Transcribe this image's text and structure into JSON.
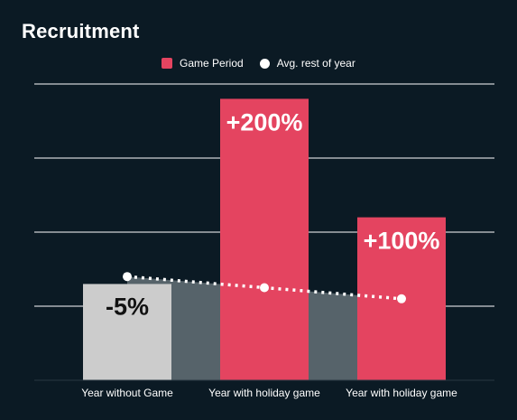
{
  "title": "Recruitment",
  "legend": {
    "bar_label": "Game Period",
    "line_label": "Avg. rest of year"
  },
  "colors": {
    "background": "#0b1a24",
    "bar_accent": "#e44460",
    "bar_neutral": "#cccccc",
    "area_fill": "#56636a",
    "gridline": "#ffffff",
    "dots": "#ffffff"
  },
  "chart_data": {
    "type": "bar",
    "title": "Recruitment",
    "categories": [
      "Year without Game",
      "Year with holiday game",
      "Year with holiday game"
    ],
    "series": [
      {
        "name": "Game Period",
        "values": [
          1.3,
          3.8,
          2.2
        ],
        "data_labels": [
          "-5%",
          "+200%",
          "+100%"
        ],
        "colors": [
          "#cccccc",
          "#e44460",
          "#e44460"
        ]
      },
      {
        "name": "Avg. rest of year",
        "type": "line",
        "style": "dotted",
        "values": [
          1.4,
          1.25,
          1.1
        ]
      }
    ],
    "ylim": [
      0,
      4
    ],
    "grid": true,
    "legend_position": "top"
  }
}
